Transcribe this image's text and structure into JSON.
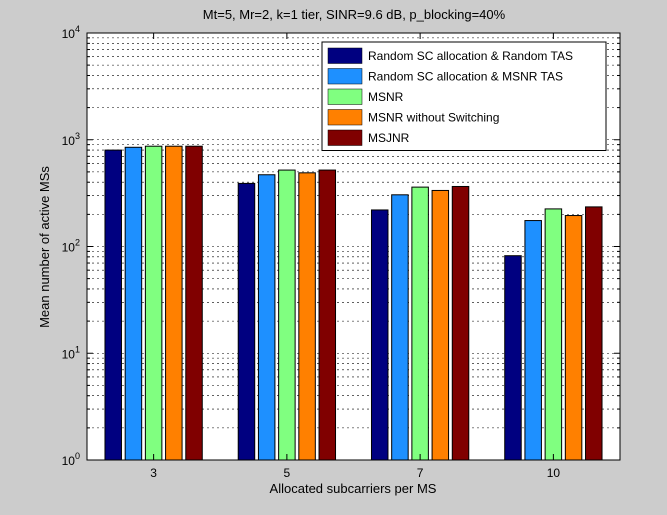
{
  "chart_data": {
    "type": "bar",
    "title": "Mt=5, Mr=2, k=1 tier, SINR=9.6 dB, p_blocking=40%",
    "xlabel": "Allocated subcarriers per MS",
    "ylabel": "Mean number of active MSs",
    "yscale": "log",
    "ylim": [
      1,
      10000
    ],
    "ytick_labels": [
      {
        "base": "10",
        "exp": "0"
      },
      {
        "base": "10",
        "exp": "1"
      },
      {
        "base": "10",
        "exp": "2"
      },
      {
        "base": "10",
        "exp": "3"
      },
      {
        "base": "10",
        "exp": "4"
      }
    ],
    "grid": true,
    "legend_position": "top-right",
    "categories": [
      "3",
      "5",
      "7",
      "10"
    ],
    "series": [
      {
        "name": "Random SC allocation & Random TAS",
        "color": "#000080",
        "values": [
          800,
          390,
          220,
          82
        ]
      },
      {
        "name": "Random SC allocation & MSNR TAS",
        "color": "#1e90ff",
        "values": [
          850,
          470,
          305,
          175
        ]
      },
      {
        "name": "MSNR",
        "color": "#80ff80",
        "values": [
          870,
          520,
          360,
          225
        ]
      },
      {
        "name": "MSNR without Switching",
        "color": "#ff8000",
        "values": [
          870,
          490,
          335,
          195
        ]
      },
      {
        "name": "MSJNR",
        "color": "#800000",
        "values": [
          870,
          520,
          365,
          235
        ]
      }
    ]
  }
}
